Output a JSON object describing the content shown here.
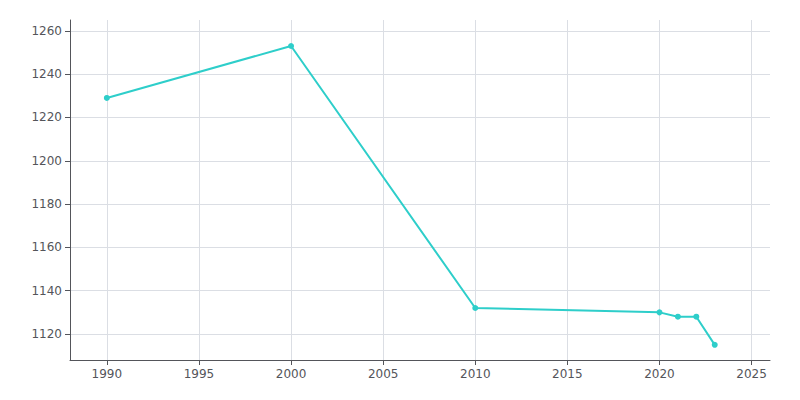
{
  "chart_data": {
    "type": "line",
    "x": [
      1990,
      2000,
      2010,
      2020,
      2021,
      2022,
      2023
    ],
    "values": [
      1229,
      1253,
      1132,
      1130,
      1128,
      1128,
      1115
    ],
    "color": "#2ECECA",
    "marker": "circle",
    "xlim": [
      1988,
      2026
    ],
    "ylim": [
      1108,
      1265
    ],
    "xticks": [
      1990,
      1995,
      2000,
      2005,
      2010,
      2015,
      2020,
      2025
    ],
    "yticks": [
      1120,
      1140,
      1160,
      1180,
      1200,
      1220,
      1240,
      1260
    ],
    "grid": true
  }
}
